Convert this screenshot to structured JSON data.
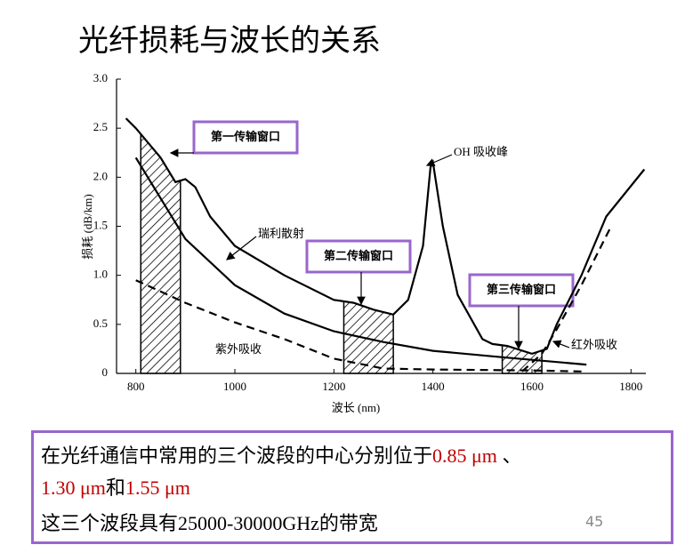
{
  "title": "光纤损耗与波长的关系",
  "chart_data": {
    "type": "line",
    "x_label": "波长 (nm)",
    "y_label": "损耗 (dB/km)",
    "xlim": [
      761,
      1830
    ],
    "ylim": [
      0,
      3
    ],
    "xticks": [
      800,
      1000,
      1200,
      1400,
      1600,
      1800
    ],
    "yticks": [
      0,
      0.5,
      {
        "value": 1,
        "label": "1.0"
      },
      1.5,
      {
        "value": 2,
        "label": "2.0"
      },
      2.5,
      {
        "value": 3,
        "label": "3.0"
      }
    ],
    "series": [
      {
        "color": "#000000",
        "dash": false,
        "x": [
          780,
          800,
          850,
          880,
          900,
          920,
          950,
          1000,
          1100,
          1200,
          1240,
          1280,
          1320,
          1350,
          1380,
          1395,
          1400,
          1420,
          1450,
          1500,
          1520,
          1550,
          1600,
          1630,
          1650,
          1700,
          1750,
          1827
        ],
        "values": [
          2.6,
          2.5,
          2.2,
          1.95,
          1.98,
          1.9,
          1.6,
          1.3,
          1.0,
          0.75,
          0.72,
          0.65,
          0.6,
          0.75,
          1.3,
          2.1,
          2.15,
          1.5,
          0.8,
          0.35,
          0.3,
          0.28,
          0.2,
          0.25,
          0.5,
          1.0,
          1.6,
          2.08
        ]
      },
      {
        "color": "#000000",
        "dash": false,
        "x": [
          800,
          900,
          1000,
          1100,
          1200,
          1300,
          1400,
          1550,
          1710
        ],
        "values": [
          2.2,
          1.37,
          0.9,
          0.61,
          0.43,
          0.32,
          0.23,
          0.16,
          0.09
        ]
      },
      {
        "color": "#000000",
        "dash": true,
        "x": [
          800,
          900,
          1000,
          1100,
          1200,
          1300,
          1400,
          1600,
          1700
        ],
        "values": [
          0.95,
          0.72,
          0.52,
          0.35,
          0.15,
          0.05,
          0.04,
          0.03,
          0.02
        ]
      },
      {
        "color": "#000000",
        "dash": true,
        "x": [
          1580,
          1620,
          1650,
          1700,
          1760
        ],
        "values": [
          0.02,
          0.2,
          0.45,
          0.9,
          1.5
        ]
      }
    ],
    "windows": [
      {
        "label": "第一传输窗口",
        "start": 810,
        "end": 890
      },
      {
        "label": "第二传输窗口",
        "start": 1220,
        "end": 1320
      },
      {
        "label": "第三传输窗口",
        "start": 1540,
        "end": 1620
      }
    ],
    "annotations": [
      "OH 吸收峰",
      "瑞利散射",
      "紫外吸收",
      "红外吸收"
    ]
  },
  "note": {
    "line1": [
      "在光纤通信中常用的三个波段的中心分别位于",
      "0.85 μm",
      " 、"
    ],
    "line2": [
      "1.30 μm",
      "和",
      "1.55 μm"
    ],
    "line3": "这三个波段具有25000-30000GHz的带宽"
  },
  "page_number": "45"
}
